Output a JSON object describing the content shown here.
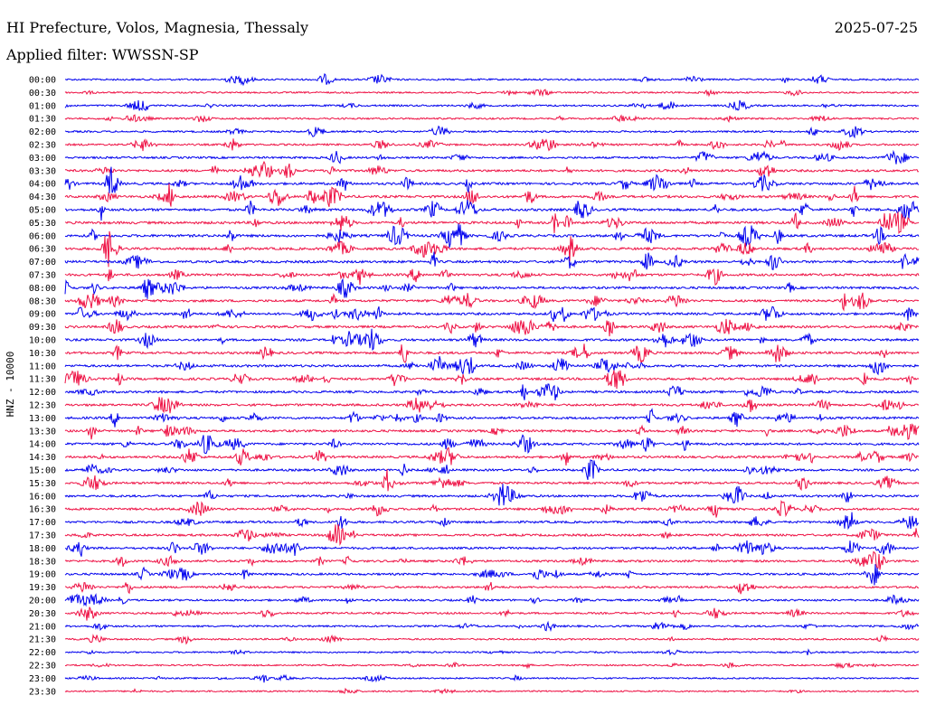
{
  "header": {
    "station": "HI Prefecture, Volos, Magnesia, Thessaly",
    "date": "2025-07-25",
    "filter": "Applied filter: WWSSN-SP"
  },
  "axis": {
    "ylabel": "HNZ - 10000"
  },
  "colors": {
    "blue": "#0000ee",
    "red": "#ee1144",
    "text": "#000000"
  },
  "chart_data": {
    "type": "helicorder",
    "title": "HI Prefecture, Volos, Magnesia, Thessaly",
    "subtitle": "Applied filter: WWSSN-SP",
    "ylabel": "HNZ - 10000",
    "row_minutes": 30,
    "row_labels": [
      "00:00",
      "00:30",
      "01:00",
      "01:30",
      "02:00",
      "02:30",
      "03:00",
      "03:30",
      "04:00",
      "04:30",
      "05:00",
      "05:30",
      "06:00",
      "06:30",
      "07:00",
      "07:30",
      "08:00",
      "08:30",
      "09:00",
      "09:30",
      "10:00",
      "10:30",
      "11:00",
      "11:30",
      "12:00",
      "12:30",
      "13:00",
      "13:30",
      "14:00",
      "14:30",
      "15:00",
      "15:30",
      "16:00",
      "16:30",
      "17:00",
      "17:30",
      "18:00",
      "18:30",
      "19:00",
      "19:30",
      "20:00",
      "20:30",
      "21:00",
      "21:30",
      "22:00",
      "22:30",
      "23:00",
      "23:30"
    ],
    "row_colors": [
      "blue",
      "red"
    ],
    "noise_level": [
      0.8,
      0.6,
      0.8,
      0.8,
      0.9,
      1.0,
      1.2,
      1.5,
      1.6,
      1.7,
      1.8,
      1.8,
      1.8,
      1.7,
      1.7,
      1.6,
      1.6,
      1.6,
      1.6,
      1.6,
      1.6,
      1.6,
      1.6,
      1.6,
      1.5,
      1.5,
      1.5,
      1.5,
      1.5,
      1.5,
      1.4,
      1.4,
      1.4,
      1.4,
      1.4,
      1.4,
      1.4,
      1.3,
      1.3,
      1.2,
      1.1,
      1.0,
      0.9,
      0.7,
      0.6,
      0.5,
      0.5,
      0.5
    ]
  }
}
